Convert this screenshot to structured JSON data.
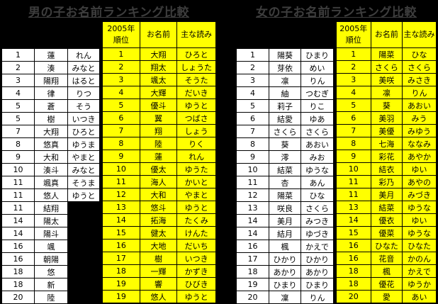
{
  "page": {
    "background_color": "#000000",
    "title_text_color": "#3d3d3d",
    "border_color": "#000000",
    "current_cell_color": "#ffffff",
    "year2005_cell_color": "#ffff00",
    "cell_text_color": "#000000"
  },
  "tables": [
    {
      "id": "boys",
      "title": "男の子お名前ランキング比較",
      "header_2005": {
        "rank_line1": "2005年",
        "rank_line2": "順位",
        "name": "お名前",
        "reading": "主な読み"
      },
      "rows": [
        {
          "rank": "1",
          "name": "蓮",
          "reading": "れん",
          "rank2005": "1",
          "name2005": "大翔",
          "reading2005": "ひろと"
        },
        {
          "rank": "2",
          "name": "湊",
          "reading": "みなと",
          "rank2005": "2",
          "name2005": "翔太",
          "reading2005": "しょうた"
        },
        {
          "rank": "3",
          "name": "陽翔",
          "reading": "はると",
          "rank2005": "3",
          "name2005": "颯太",
          "reading2005": "そうた"
        },
        {
          "rank": "4",
          "name": "律",
          "reading": "りつ",
          "rank2005": "4",
          "name2005": "大輝",
          "reading2005": "だいき"
        },
        {
          "rank": "5",
          "name": "蒼",
          "reading": "そう",
          "rank2005": "5",
          "name2005": "優斗",
          "reading2005": "ゆうと"
        },
        {
          "rank": "5",
          "name": "樹",
          "reading": "いつき",
          "rank2005": "6",
          "name2005": "翼",
          "reading2005": "つばさ"
        },
        {
          "rank": "7",
          "name": "大翔",
          "reading": "ひろと",
          "rank2005": "7",
          "name2005": "翔",
          "reading2005": "しょう"
        },
        {
          "rank": "8",
          "name": "悠真",
          "reading": "ゆうま",
          "rank2005": "8",
          "name2005": "陸",
          "reading2005": "りく"
        },
        {
          "rank": "9",
          "name": "大和",
          "reading": "やまと",
          "rank2005": "9",
          "name2005": "蓮",
          "reading2005": "れん"
        },
        {
          "rank": "10",
          "name": "湊斗",
          "reading": "みなと",
          "rank2005": "10",
          "name2005": "優太",
          "reading2005": "ゆうた"
        },
        {
          "rank": "11",
          "name": "颯真",
          "reading": "そうま",
          "rank2005": "11",
          "name2005": "海人",
          "reading2005": "かいと"
        },
        {
          "rank": "11",
          "name": "悠人",
          "reading": "ゆうと",
          "rank2005": "12",
          "name2005": "大和",
          "reading2005": "やまと"
        },
        {
          "rank": "11",
          "name": "結翔",
          "reading": null,
          "rank2005": "13",
          "name2005": "悠斗",
          "reading2005": "ゆうと"
        },
        {
          "rank": "14",
          "name": "陽太",
          "reading": null,
          "rank2005": "14",
          "name2005": "拓海",
          "reading2005": "たくみ"
        },
        {
          "rank": "14",
          "name": "陽斗",
          "reading": null,
          "rank2005": "15",
          "name2005": "健太",
          "reading2005": "けんた"
        },
        {
          "rank": "16",
          "name": "颯",
          "reading": null,
          "rank2005": "16",
          "name2005": "大地",
          "reading2005": "だいち"
        },
        {
          "rank": "16",
          "name": "朝陽",
          "reading": null,
          "rank2005": "17",
          "name2005": "樹",
          "reading2005": "いつき"
        },
        {
          "rank": "18",
          "name": "悠",
          "reading": null,
          "rank2005": "18",
          "name2005": "一輝",
          "reading2005": "かずき"
        },
        {
          "rank": "18",
          "name": "新",
          "reading": null,
          "rank2005": "19",
          "name2005": "響",
          "reading2005": "ひびき"
        },
        {
          "rank": "20",
          "name": "陸",
          "reading": null,
          "rank2005": "19",
          "name2005": "悠人",
          "reading2005": "ゆうと"
        }
      ]
    },
    {
      "id": "girls",
      "title": "女の子お名前ランキング比較",
      "header_2005": {
        "rank_line1": "2005年",
        "rank_line2": "順位",
        "name": "お名前",
        "reading": "主な読み"
      },
      "rows": [
        {
          "rank": "1",
          "name": "陽葵",
          "reading": "ひまり",
          "rank2005": "1",
          "name2005": "陽菜",
          "reading2005": "ひな"
        },
        {
          "rank": "2",
          "name": "芽依",
          "reading": "めい",
          "rank2005": "2",
          "name2005": "さくら",
          "reading2005": "さくら"
        },
        {
          "rank": "3",
          "name": "凛",
          "reading": "りん",
          "rank2005": "3",
          "name2005": "美咲",
          "reading2005": "みさき"
        },
        {
          "rank": "4",
          "name": "紬",
          "reading": "つむぎ",
          "rank2005": "4",
          "name2005": "凛",
          "reading2005": "りん"
        },
        {
          "rank": "5",
          "name": "莉子",
          "reading": "りこ",
          "rank2005": "5",
          "name2005": "葵",
          "reading2005": "あおい"
        },
        {
          "rank": "6",
          "name": "結愛",
          "reading": "ゆあ",
          "rank2005": "6",
          "name2005": "美羽",
          "reading2005": "みう"
        },
        {
          "rank": "7",
          "name": "さくら",
          "reading": "さくら",
          "rank2005": "7",
          "name2005": "美優",
          "reading2005": "みゆう"
        },
        {
          "rank": "8",
          "name": "葵",
          "reading": "あおい",
          "rank2005": "8",
          "name2005": "七海",
          "reading2005": "ななみ"
        },
        {
          "rank": "9",
          "name": "澪",
          "reading": "みお",
          "rank2005": "9",
          "name2005": "彩花",
          "reading2005": "あやか"
        },
        {
          "rank": "10",
          "name": "結菜",
          "reading": "ゆうな",
          "rank2005": "10",
          "name2005": "結衣",
          "reading2005": "ゆい"
        },
        {
          "rank": "11",
          "name": "杏",
          "reading": "あん",
          "rank2005": "11",
          "name2005": "彩乃",
          "reading2005": "あやの"
        },
        {
          "rank": "12",
          "name": "陽菜",
          "reading": "ひな",
          "rank2005": "11",
          "name2005": "美月",
          "reading2005": "みづき"
        },
        {
          "rank": "13",
          "name": "咲良",
          "reading": "さくら",
          "rank2005": "13",
          "name2005": "結菜",
          "reading2005": "ゆうな"
        },
        {
          "rank": "14",
          "name": "美月",
          "reading": "みつき",
          "rank2005": "14",
          "name2005": "優衣",
          "reading2005": "ゆい"
        },
        {
          "rank": "14",
          "name": "結月",
          "reading": "ゆづき",
          "rank2005": "15",
          "name2005": "優菜",
          "reading2005": "ゆうな"
        },
        {
          "rank": "16",
          "name": "楓",
          "reading": "かえで",
          "rank2005": "16",
          "name2005": "ひなた",
          "reading2005": "ひなた"
        },
        {
          "rank": "17",
          "name": "ひかり",
          "reading": "ひかり",
          "rank2005": "16",
          "name2005": "花音",
          "reading2005": "かのん"
        },
        {
          "rank": "18",
          "name": "あかり",
          "reading": "あかり",
          "rank2005": "18",
          "name2005": "楓",
          "reading2005": "かえで"
        },
        {
          "rank": "19",
          "name": "ひまり",
          "reading": "ひまり",
          "rank2005": "18",
          "name2005": "優花",
          "reading2005": "ゆうか"
        },
        {
          "rank": "20",
          "name": "凜",
          "reading": "りん",
          "rank2005": "20",
          "name2005": "愛",
          "reading2005": "あい"
        }
      ]
    }
  ]
}
